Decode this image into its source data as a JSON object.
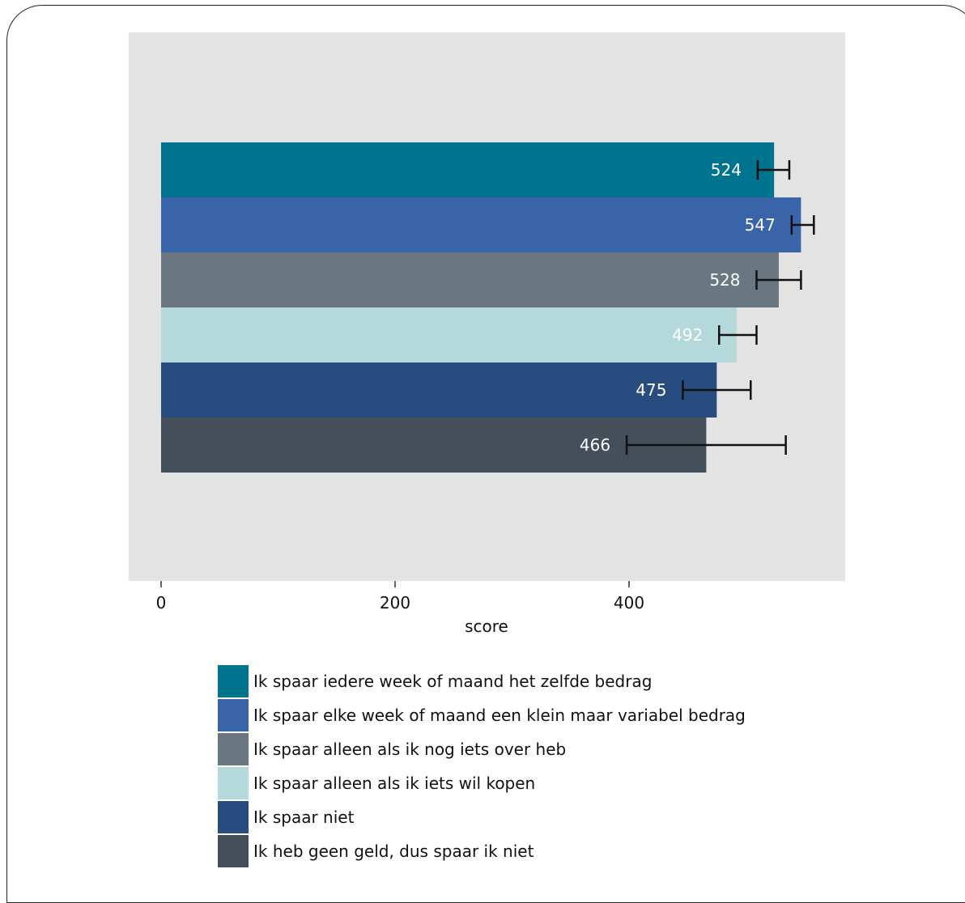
{
  "chart_data": {
    "type": "bar",
    "orientation": "horizontal",
    "title": "",
    "xlabel": "score",
    "ylabel": "",
    "xlim": [
      0,
      585
    ],
    "xticks": [
      0,
      200,
      400
    ],
    "grid": false,
    "legend_position": "bottom",
    "categories": [
      "Ik spaar iedere week of maand het zelfde bedrag",
      "Ik spaar elke week of maand een klein maar variabel bedrag",
      "Ik spaar alleen als ik nog iets over heb",
      "Ik spaar alleen als ik iets wil kopen",
      "Ik spaar niet",
      "Ik heb geen geld, dus spaar ik niet"
    ],
    "values": [
      524,
      547,
      528,
      492,
      475,
      466
    ],
    "value_labels": [
      "524",
      "547",
      "528",
      "492",
      "475",
      "466"
    ],
    "error_low": [
      510,
      539,
      509,
      477,
      446,
      398
    ],
    "error_high": [
      537,
      558,
      547,
      509,
      504,
      534
    ],
    "colors": [
      "#00748f",
      "#3964aa",
      "#6b7780",
      "#b5d8da",
      "#294c7f",
      "#454f59"
    ],
    "label_colors": [
      "#ffffff",
      "#ffffff",
      "#ffffff",
      "#ffffff",
      "#ffffff",
      "#ffffff"
    ]
  }
}
